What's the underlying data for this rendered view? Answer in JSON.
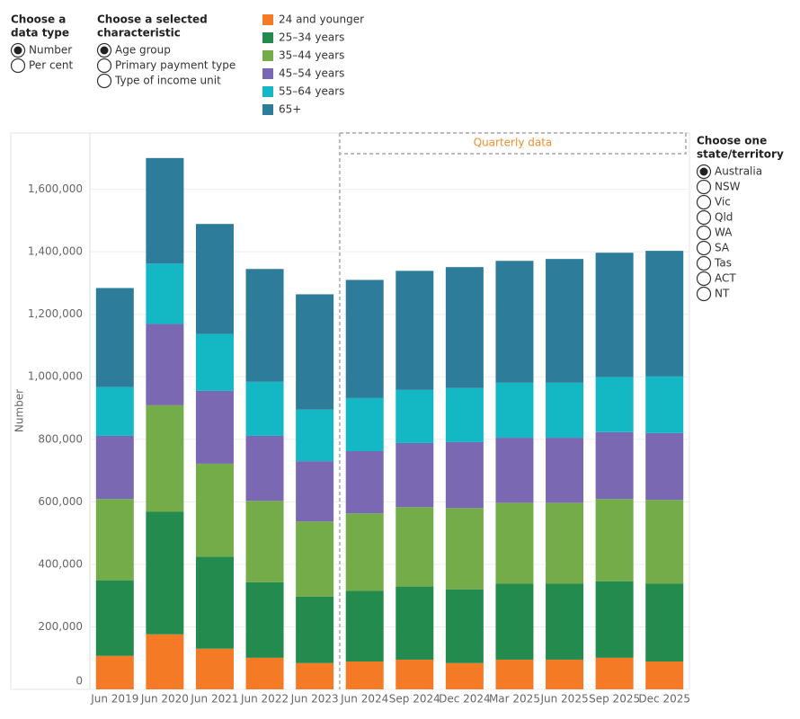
{
  "controls": [
    {
      "title": [
        "Choose a",
        "data type"
      ],
      "options": [
        "Number",
        "Per cent"
      ],
      "selected": 0
    },
    {
      "title": [
        "Choose a selected",
        "characteristic"
      ],
      "options": [
        "Age group",
        "Primary payment type",
        "Type of income unit"
      ],
      "selected": 0
    },
    {
      "title": [
        "Choose one",
        "state/territory"
      ],
      "options": [
        "Australia",
        "NSW",
        "Vic",
        "Qld",
        "WA",
        "SA",
        "Tas",
        "ACT",
        "NT"
      ],
      "selected": 0
    }
  ],
  "chart_data": {
    "type": "stacked_bar",
    "y_label": "Number",
    "annotation": "Quarterly data",
    "categories": [
      "Jun 2019",
      "Jun 2020",
      "Jun 2021",
      "Jun 2022",
      "Jun 2023",
      "Jun 2024",
      "Sep 2024",
      "Dec 2024",
      "Mar 2025",
      "Jun 2025",
      "Sep 2025",
      "Dec 2025"
    ],
    "series": [
      {
        "name": "24 and younger",
        "color": "#f47a26",
        "values": [
          107000,
          176000,
          130000,
          101000,
          84000,
          89000,
          95000,
          84000,
          95000,
          95000,
          101000,
          89000
        ]
      },
      {
        "name": "25–34 years",
        "color": "#238b4e",
        "values": [
          242000,
          392000,
          294000,
          242000,
          213000,
          226000,
          234000,
          236000,
          243000,
          243000,
          245000,
          249000
        ]
      },
      {
        "name": "35–44 years",
        "color": "#73ac48",
        "values": [
          260000,
          341000,
          298000,
          260000,
          240000,
          248000,
          254000,
          260000,
          259000,
          259000,
          263000,
          268000
        ]
      },
      {
        "name": "45–54 years",
        "color": "#7b68b3",
        "values": [
          202000,
          260000,
          233000,
          208000,
          193000,
          199000,
          205000,
          211000,
          208000,
          208000,
          214000,
          214000
        ]
      },
      {
        "name": "55–64 years",
        "color": "#14b8c4",
        "values": [
          156000,
          193000,
          182000,
          173000,
          165000,
          170000,
          170000,
          173000,
          176000,
          176000,
          176000,
          181000
        ]
      },
      {
        "name": "65+",
        "color": "#2d7c9a",
        "values": [
          317000,
          338000,
          352000,
          361000,
          369000,
          378000,
          381000,
          387000,
          390000,
          396000,
          398000,
          402000
        ]
      }
    ],
    "ylim": [
      0,
      1780000
    ],
    "yticks": [
      0,
      {
        "value": 200000,
        "label": "200,000"
      },
      {
        "value": 400000,
        "label": "400,000"
      },
      {
        "value": 600000,
        "label": "600,000"
      },
      {
        "value": 800000,
        "label": "800,000"
      },
      {
        "value": 1000000,
        "label": "1,000,000"
      },
      {
        "value": 1200000,
        "label": "1,200,000"
      },
      {
        "value": 1400000,
        "label": "1,400,000"
      },
      {
        "value": 1600000,
        "label": "1,600,000"
      }
    ],
    "grid": true
  }
}
